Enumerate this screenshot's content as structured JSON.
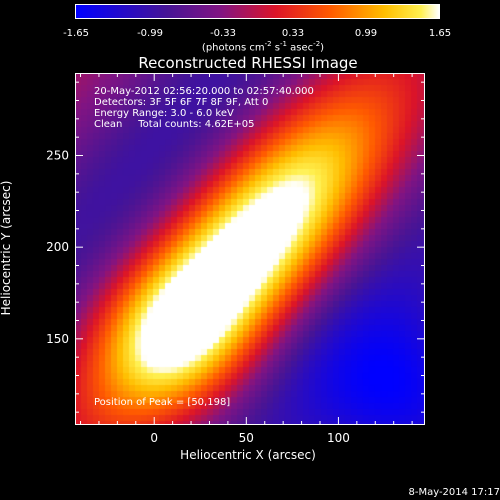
{
  "colorbar": {
    "ticks": [
      "-1.65",
      "-0.99",
      "-0.33",
      "0.33",
      "0.99",
      "1.65"
    ],
    "units_prefix": "(photons cm",
    "units_exp1": "-2",
    "units_mid": " s",
    "units_exp2": "-1",
    "units_mid2": " asec",
    "units_exp3": "-2",
    "units_suffix": ")"
  },
  "chart_data": {
    "type": "heatmap",
    "title": "Reconstructed RHESSI Image",
    "xlabel": "Heliocentric X (arcsec)",
    "ylabel": "Heliocentric Y (arcsec)",
    "xlim": [
      -43,
      147
    ],
    "ylim": [
      103,
      295
    ],
    "x_ticks": [
      "0",
      "50",
      "100"
    ],
    "x_tick_values": [
      0,
      50,
      100
    ],
    "y_ticks": [
      "150",
      "200",
      "250"
    ],
    "y_tick_values": [
      150,
      200,
      250
    ],
    "color_range": [
      -1.65,
      1.65
    ],
    "peak": [
      50,
      198
    ],
    "info": [
      "20-May-2012 02:56:20.000 to 02:57:40.000",
      "Detectors: 3F 5F 6F 7F 8F 9F, Att 0",
      "Energy Range: 3.0 - 6.0 keV",
      "Clean     Total counts: 4.62E+05"
    ],
    "peak_text": "Position of Peak = [50,198]"
  },
  "footer": {
    "date": "8-May-2014 17:17"
  }
}
